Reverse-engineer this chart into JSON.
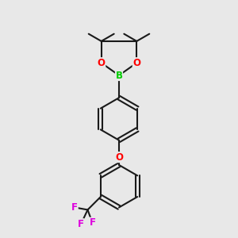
{
  "bg_color": "#e8e8e8",
  "bond_color": "#1a1a1a",
  "bond_width": 1.5,
  "O_color": "#ff0000",
  "B_color": "#00cc00",
  "F_color": "#dd00dd",
  "font_size_atom": 8.5,
  "fig_width": 3.0,
  "fig_height": 3.0,
  "dpi": 100,
  "xlim": [
    0,
    10
  ],
  "ylim": [
    0,
    10
  ]
}
